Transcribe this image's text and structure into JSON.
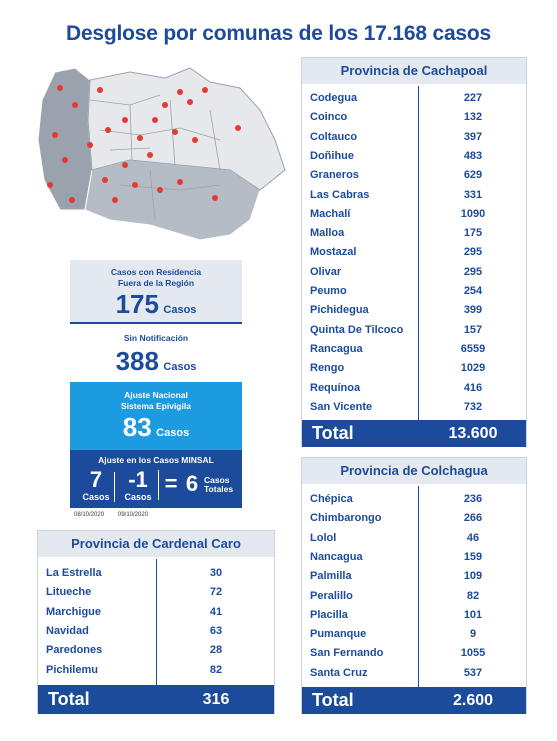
{
  "title": "Desglose por comunas de los 17.168 casos",
  "colors": {
    "primary": "#1c4b9c",
    "accent": "#1c9be0",
    "header_bg": "#e4e8ef",
    "pin": "#e53935"
  },
  "residencia": {
    "line1": "Casos con Residencia",
    "line2": "Fuera de la Región",
    "value": "175",
    "unit": "Casos"
  },
  "sin_notificacion": {
    "label": "Sin Notificación",
    "value": "388",
    "unit": "Casos"
  },
  "ajuste_nacional": {
    "line1": "Ajuste Nacional",
    "line2": "Sistema Epivigila",
    "value": "83",
    "unit": "Casos"
  },
  "ajuste_minsal": {
    "label": "Ajuste en los Casos MINSAL",
    "a_value": "7",
    "a_unit": "Casos",
    "a_date": "08/10/2020",
    "b_value": "-1",
    "b_unit": "Casos",
    "b_date": "09/10/2020",
    "equals": "=",
    "c_value": "6",
    "c_unit1": "Casos",
    "c_unit2": "Totales"
  },
  "cachapoal": {
    "header": "Provincia de Cachapoal",
    "rows": [
      {
        "name": "Codegua",
        "value": "227"
      },
      {
        "name": "Coinco",
        "value": "132"
      },
      {
        "name": "Coltauco",
        "value": "397"
      },
      {
        "name": "Doñihue",
        "value": "483"
      },
      {
        "name": "Graneros",
        "value": "629"
      },
      {
        "name": "Las Cabras",
        "value": "331"
      },
      {
        "name": "Machalí",
        "value": "1090"
      },
      {
        "name": "Malloa",
        "value": "175"
      },
      {
        "name": "Mostazal",
        "value": "295"
      },
      {
        "name": "Olivar",
        "value": "295"
      },
      {
        "name": "Peumo",
        "value": "254"
      },
      {
        "name": "Pichidegua",
        "value": "399"
      },
      {
        "name": "Quinta De Tilcoco",
        "value": "157"
      },
      {
        "name": "Rancagua",
        "value": "6559"
      },
      {
        "name": "Rengo",
        "value": "1029"
      },
      {
        "name": "Requínoa",
        "value": "416"
      },
      {
        "name": "San Vicente",
        "value": "732"
      }
    ],
    "total_label": "Total",
    "total_value": "13.600"
  },
  "colchagua": {
    "header": "Provincia de Colchagua",
    "rows": [
      {
        "name": "Chépica",
        "value": "236"
      },
      {
        "name": "Chimbarongo",
        "value": "266"
      },
      {
        "name": "Lolol",
        "value": "46"
      },
      {
        "name": "Nancagua",
        "value": "159"
      },
      {
        "name": "Palmilla",
        "value": "109"
      },
      {
        "name": "Peralillo",
        "value": "82"
      },
      {
        "name": "Placilla",
        "value": "101"
      },
      {
        "name": "Pumanque",
        "value": "9"
      },
      {
        "name": "San Fernando",
        "value": "1055"
      },
      {
        "name": "Santa Cruz",
        "value": "537"
      }
    ],
    "total_label": "Total",
    "total_value": "2.600"
  },
  "cardenal_caro": {
    "header": "Provincia de Cardenal Caro",
    "rows": [
      {
        "name": "La Estrella",
        "value": "30"
      },
      {
        "name": "Litueche",
        "value": "72"
      },
      {
        "name": "Marchigue",
        "value": "41"
      },
      {
        "name": "Navidad",
        "value": "63"
      },
      {
        "name": "Paredones",
        "value": "28"
      },
      {
        "name": "Pichilemu",
        "value": "82"
      }
    ],
    "total_label": "Total",
    "total_value": "316"
  }
}
